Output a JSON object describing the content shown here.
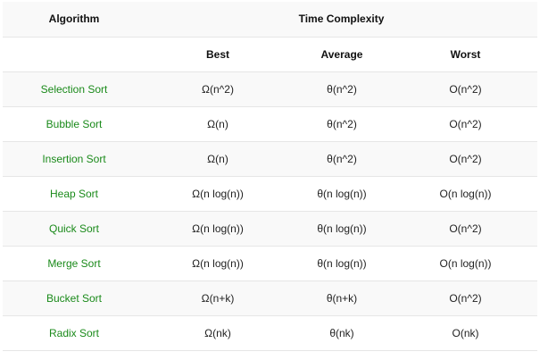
{
  "headers": {
    "algorithm": "Algorithm",
    "time_complexity": "Time Complexity",
    "best": "Best",
    "average": "Average",
    "worst": "Worst"
  },
  "rows": [
    {
      "algorithm": "Selection Sort",
      "best": "Ω(n^2)",
      "average": "θ(n^2)",
      "worst": "O(n^2)"
    },
    {
      "algorithm": "Bubble Sort",
      "best": "Ω(n)",
      "average": "θ(n^2)",
      "worst": "O(n^2)"
    },
    {
      "algorithm": "Insertion Sort",
      "best": "Ω(n)",
      "average": "θ(n^2)",
      "worst": "O(n^2)"
    },
    {
      "algorithm": "Heap Sort",
      "best": "Ω(n log(n))",
      "average": "θ(n log(n))",
      "worst": "O(n log(n))"
    },
    {
      "algorithm": "Quick Sort",
      "best": "Ω(n log(n))",
      "average": "θ(n log(n))",
      "worst": "O(n^2)"
    },
    {
      "algorithm": "Merge Sort",
      "best": "Ω(n log(n))",
      "average": "θ(n log(n))",
      "worst": "O(n log(n))"
    },
    {
      "algorithm": "Bucket Sort",
      "best": "Ω(n+k)",
      "average": "θ(n+k)",
      "worst": "O(n^2)"
    },
    {
      "algorithm": "Radix Sort",
      "best": "Ω(nk)",
      "average": "θ(nk)",
      "worst": "O(nk)"
    }
  ],
  "colors": {
    "algorithm_text": "#1a8a1a",
    "stripe_background": "#f9f9f9",
    "border": "#e6e6e6"
  }
}
